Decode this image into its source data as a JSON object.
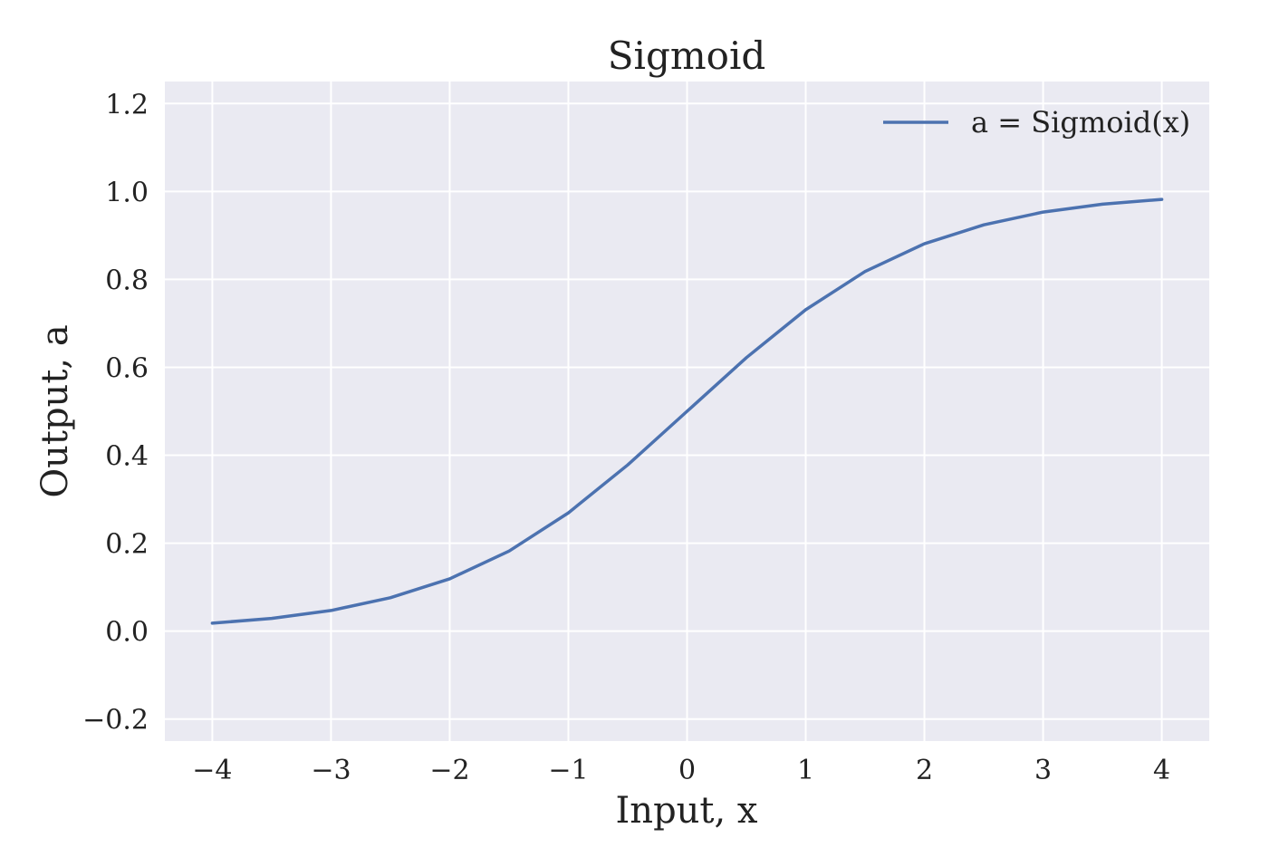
{
  "chart_data": {
    "type": "line",
    "title": "Sigmoid",
    "xlabel": "Input, x",
    "ylabel": "Output, a",
    "xlim": [
      -4.4,
      4.4
    ],
    "ylim": [
      -0.25,
      1.25
    ],
    "x_ticks": [
      -4,
      -3,
      -2,
      -1,
      0,
      1,
      2,
      3,
      4
    ],
    "x_tick_labels": [
      "−4",
      "−3",
      "−2",
      "−1",
      "0",
      "1",
      "2",
      "3",
      "4"
    ],
    "y_ticks": [
      -0.2,
      0.0,
      0.2,
      0.4,
      0.6,
      0.8,
      1.0,
      1.2
    ],
    "y_tick_labels": [
      "−0.2",
      "0.0",
      "0.2",
      "0.4",
      "0.6",
      "0.8",
      "1.0",
      "1.2"
    ],
    "grid": true,
    "legend_position": "top-right",
    "series": [
      {
        "name": "a = Sigmoid(x)",
        "color": "#4c72b0",
        "x": [
          -4,
          -3.5,
          -3,
          -2.5,
          -2,
          -1.5,
          -1,
          -0.5,
          0,
          0.5,
          1,
          1.5,
          2,
          2.5,
          3,
          3.5,
          4
        ],
        "y": [
          0.018,
          0.029,
          0.047,
          0.076,
          0.119,
          0.182,
          0.269,
          0.378,
          0.5,
          0.622,
          0.731,
          0.818,
          0.881,
          0.924,
          0.953,
          0.971,
          0.982
        ]
      }
    ],
    "colors": {
      "background": "#eaeaf2",
      "grid": "#ffffff",
      "line": "#4c72b0"
    }
  }
}
